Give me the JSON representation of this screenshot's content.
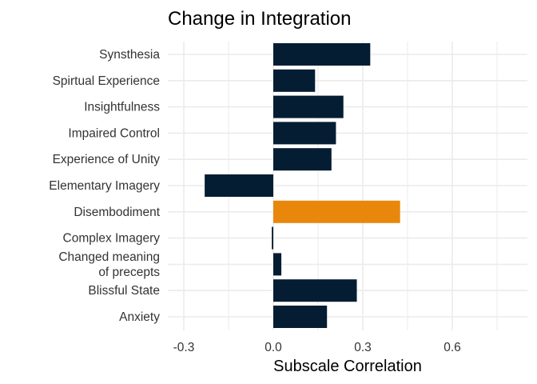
{
  "chart_data": {
    "type": "bar",
    "orientation": "horizontal",
    "title": "Change in Integration",
    "xlabel": "Subscale Correlation",
    "ylabel": "",
    "xlim": [
      -0.3,
      0.85
    ],
    "x_ticks": [
      "-0.3",
      "0.0",
      "0.3",
      "0.6"
    ],
    "categories": [
      "Synsthesia",
      "Spirtual Experience",
      "Insightfulness",
      "Impaired Control",
      "Experience of Unity",
      "Elementary Imagery",
      "Disembodiment",
      "Complex Imagery",
      [
        "Changed meaning",
        "of precepts"
      ],
      "Blissful State",
      "Anxiety"
    ],
    "values": [
      0.325,
      0.14,
      0.235,
      0.21,
      0.195,
      -0.23,
      0.425,
      -0.005,
      0.027,
      0.28,
      0.18
    ],
    "highlight_index": 6,
    "colors": {
      "default": "#051D33",
      "highlight": "#E8870C",
      "grid": "#EBEBEB"
    },
    "grid": true,
    "legend": "none"
  }
}
